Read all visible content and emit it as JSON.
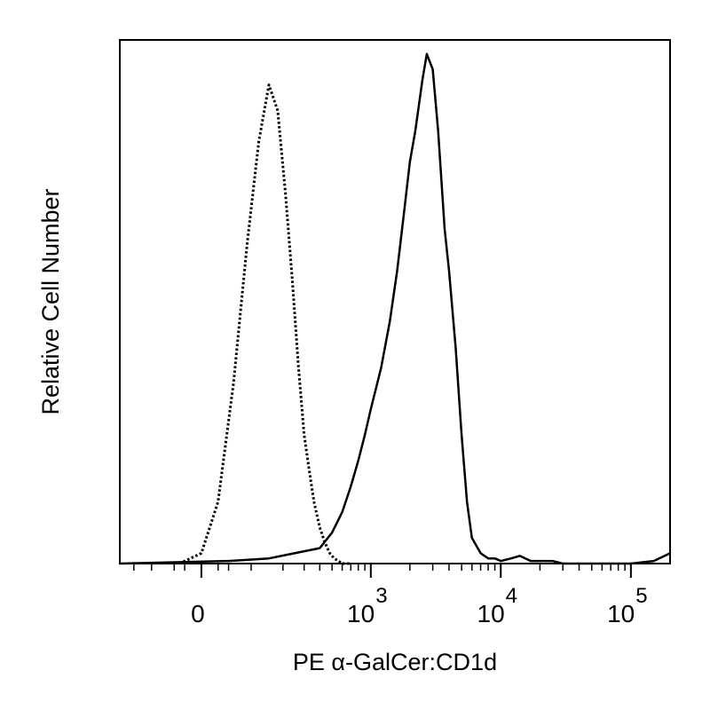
{
  "chart_data": {
    "type": "line",
    "title": "",
    "xlabel": "PE α-GalCer:CD1d",
    "ylabel": "Relative Cell Number",
    "x_scale": "biexponential",
    "x_ticks": [
      {
        "base": "0",
        "exp": "",
        "value": 0
      },
      {
        "base": "10",
        "exp": "3",
        "value": 1000
      },
      {
        "base": "10",
        "exp": "4",
        "value": 10000
      },
      {
        "base": "10",
        "exp": "5",
        "value": 100000
      }
    ],
    "xlim": [
      -200,
      200000
    ],
    "ylim": [
      0,
      100
    ],
    "grid": false,
    "legend": "none",
    "series": [
      {
        "style": "dotted",
        "color": "#000000",
        "x": [
          -40,
          0,
          30,
          60,
          90,
          120,
          150,
          180,
          210,
          240,
          270,
          300,
          330,
          360,
          400,
          440,
          480,
          520,
          560,
          600,
          650,
          700
        ],
        "y": [
          0,
          2,
          12,
          35,
          62,
          82,
          93,
          88,
          72,
          55,
          38,
          25,
          18,
          12,
          7,
          4,
          2,
          1,
          0.5,
          0,
          0,
          0
        ]
      },
      {
        "style": "solid",
        "color": "#000000",
        "x": [
          -200,
          50,
          150,
          250,
          400,
          500,
          600,
          700,
          800,
          900,
          1000,
          1200,
          1400,
          1600,
          1800,
          2000,
          2200,
          2500,
          2700,
          3000,
          3300,
          3700,
          4000,
          4500,
          5000,
          5500,
          6000,
          7000,
          8000,
          9000,
          10000,
          12000,
          14000,
          17000,
          20000,
          25000,
          30000,
          40000,
          50000,
          70000,
          100000,
          150000,
          200000
        ],
        "y": [
          0,
          0.5,
          1,
          2,
          3,
          6,
          10,
          15,
          20,
          25,
          30,
          38,
          47,
          57,
          68,
          78,
          84,
          94,
          99,
          96,
          84,
          65,
          57,
          42,
          25,
          12,
          5,
          2,
          1,
          1,
          0.5,
          1,
          1.5,
          0.5,
          0.5,
          0.5,
          0,
          0,
          0,
          0,
          0,
          0.5,
          2
        ]
      }
    ]
  }
}
